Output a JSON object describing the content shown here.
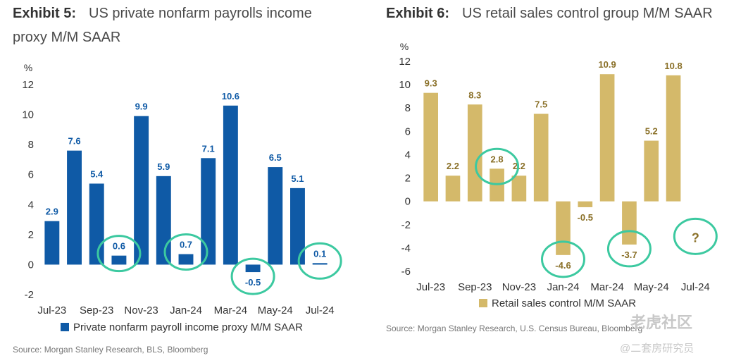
{
  "left": {
    "exhibit_label": "Exhibit 5:",
    "title_line1": "US private nonfarm payrolls income",
    "title_line2": "proxy M/M SAAR",
    "source": "Source: Morgan Stanley Research, BLS, Bloomberg"
  },
  "right": {
    "exhibit_label": "Exhibit 6:",
    "title_line1": "US retail sales control group M/M SAAR",
    "source": "Source: Morgan Stanley Research, U.S. Census Bureau, Bloomberg"
  },
  "watermark": {
    "line1": "老虎社区",
    "line2": "@二套房研究员"
  },
  "chart_data": [
    {
      "type": "bar",
      "title": "US private nonfarm payrolls income proxy M/M SAAR",
      "ylabel": "%",
      "ylim": [
        -2,
        12
      ],
      "yticks": [
        -2,
        0,
        2,
        4,
        6,
        8,
        10,
        12
      ],
      "color": "#0f5aa6",
      "circle_color": "#3cc9a0",
      "xtick_labels": [
        "Jul-23",
        "Sep-23",
        "Nov-23",
        "Jan-24",
        "Mar-24",
        "May-24",
        "Jul-24"
      ],
      "categories": [
        "Jul-23",
        "Aug-23",
        "Sep-23",
        "Oct-23",
        "Nov-23",
        "Dec-23",
        "Jan-24",
        "Feb-24",
        "Mar-24",
        "Apr-24",
        "May-24",
        "Jun-24",
        "Jul-24"
      ],
      "series": [
        {
          "name": "Private nonfarm payroll income proxy M/M SAAR",
          "values": [
            2.9,
            7.6,
            5.4,
            0.6,
            9.9,
            5.9,
            0.7,
            7.1,
            10.6,
            -0.5,
            6.5,
            5.1,
            0.1
          ],
          "labels": [
            "2.9",
            "7.6",
            "5.4",
            "0.6",
            "9.9",
            "5.9",
            "0.7",
            "7.1",
            "10.6",
            "-0.5",
            "6.5",
            "5.1",
            "0.1"
          ]
        }
      ],
      "circled_categories": [
        "Oct-23",
        "Jan-24",
        "Apr-24",
        "Jul-24"
      ],
      "legend": "bottom"
    },
    {
      "type": "bar",
      "title": "US retail sales control group M/M SAAR",
      "ylabel": "%",
      "ylim": [
        -6,
        12
      ],
      "yticks": [
        -6,
        -4,
        -2,
        0,
        2,
        4,
        6,
        8,
        10,
        12
      ],
      "color": "#d4b96a",
      "label_color": "#8a7028",
      "circle_color": "#3cc9a0",
      "xtick_labels": [
        "Jul-23",
        "Sep-23",
        "Nov-23",
        "Jan-24",
        "Mar-24",
        "May-24",
        "Jul-24"
      ],
      "categories": [
        "Jul-23",
        "Aug-23",
        "Sep-23",
        "Oct-23",
        "Nov-23",
        "Dec-23",
        "Jan-24",
        "Feb-24",
        "Mar-24",
        "Apr-24",
        "May-24",
        "Jun-24",
        "Jul-24"
      ],
      "series": [
        {
          "name": "Retail sales control M/M SAAR",
          "values": [
            9.3,
            2.2,
            8.3,
            2.8,
            2.2,
            7.5,
            -4.6,
            -0.5,
            10.9,
            -3.7,
            5.2,
            10.8,
            null
          ],
          "labels": [
            "9.3",
            "2.2",
            "8.3",
            "2.8",
            "2.2",
            "7.5",
            "-4.6",
            "-0.5",
            "10.9",
            "-3.7",
            "5.2",
            "10.8",
            "?"
          ]
        }
      ],
      "circled_categories": [
        "Oct-23",
        "Jan-24",
        "Apr-24",
        "Jul-24"
      ],
      "legend": "bottom"
    }
  ]
}
